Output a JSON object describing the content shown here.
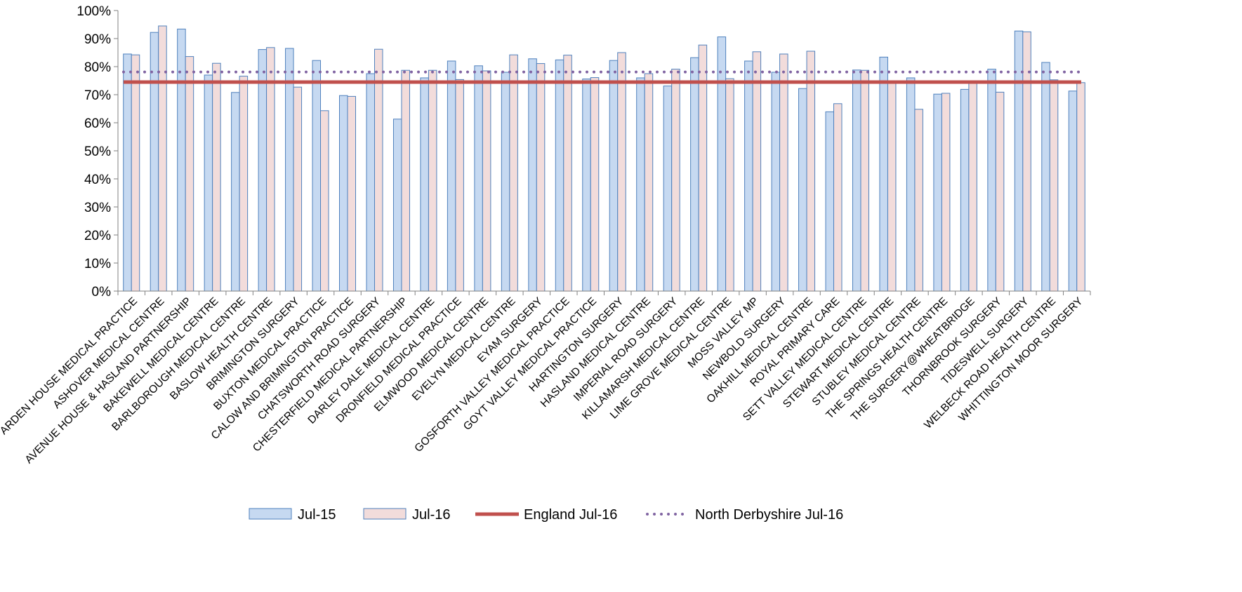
{
  "chart_data": {
    "type": "bar",
    "title": "",
    "xlabel": "",
    "ylabel": "",
    "ylim": [
      0,
      1
    ],
    "y_tick_labels": [
      "0%",
      "10%",
      "20%",
      "30%",
      "40%",
      "50%",
      "60%",
      "70%",
      "80%",
      "90%",
      "100%"
    ],
    "grid": false,
    "legend_position": "bottom",
    "categories": [
      "ARDEN HOUSE MEDICAL PRACTICE",
      "ASHOVER MEDICAL CENTRE",
      "AVENUE HOUSE & HASLAND PARTNERSHIP",
      "BAKEWELL MEDICAL CENTRE",
      "BARLBOROUGH MEDICAL CENTRE",
      "BASLOW HEALTH CENTRE",
      "BRIMINGTON SURGERY",
      "BUXTON MEDICAL PRACTICE",
      "CALOW AND BRIMINGTON PRACTICE",
      "CHATSWORTH ROAD SURGERY",
      "CHESTERFIELD MEDICAL PARTNERSHIP",
      "DARLEY DALE MEDICAL CENTRE",
      "DRONFIELD MEDICAL PRACTICE",
      "ELMWOOD MEDICAL CENTRE",
      "EVELYN MEDICAL CENTRE",
      "EYAM SURGERY",
      "GOSFORTH VALLEY MEDICAL PRACTICE",
      "GOYT VALLEY MEDICAL PRACTICE",
      "HARTINGTON SURGERY",
      "HASLAND MEDICAL CENTRE",
      "IMPERIAL ROAD SURGERY",
      "KILLAMARSH MEDICAL CENTRE",
      "LIME GROVE MEDICAL CENTRE",
      "MOSS VALLEY MP",
      "NEWBOLD SURGERY",
      "OAKHILL MEDICAL CENTRE",
      "ROYAL PRIMARY CARE",
      "SETT VALLEY MEDICAL CENTRE",
      "STEWART MEDICAL CENTRE",
      "STUBLEY MEDICAL CENTRE",
      "THE SPRINGS HEALTH CENTRE",
      "THE SURGERY@WHEATBRIDGE",
      "THORNBROOK SURGERY",
      "TIDESWELL SURGERY",
      "WELBECK ROAD HEALTH CENTRE",
      "WHITTINGTON MOOR SURGERY"
    ],
    "series": [
      {
        "name": "Jul-15",
        "type": "bar",
        "fill": "#c6d9f1",
        "stroke": "#4f81bd",
        "values": [
          0.845,
          0.922,
          0.934,
          0.77,
          0.708,
          0.861,
          0.865,
          0.822,
          0.697,
          0.775,
          0.613,
          0.76,
          0.82,
          0.803,
          0.78,
          0.828,
          0.824,
          0.756,
          0.822,
          0.76,
          0.731,
          0.832,
          0.906,
          0.82,
          0.78,
          0.722,
          0.639,
          0.788,
          0.834,
          0.76,
          0.702,
          0.719,
          0.791,
          0.927,
          0.815,
          0.713
        ]
      },
      {
        "name": "Jul-16",
        "type": "bar",
        "fill": "#f2dcdb",
        "stroke": "#4f81bd",
        "values": [
          0.842,
          0.945,
          0.836,
          0.812,
          0.766,
          0.868,
          0.727,
          0.643,
          0.694,
          0.862,
          0.787,
          0.787,
          0.754,
          0.785,
          0.842,
          0.811,
          0.841,
          0.761,
          0.85,
          0.775,
          0.791,
          0.877,
          0.757,
          0.853,
          0.845,
          0.855,
          0.668,
          0.787,
          0.744,
          0.648,
          0.705,
          0.75,
          0.709,
          0.924,
          0.753,
          0.743
        ]
      },
      {
        "name": "England Jul-16",
        "type": "reference-line",
        "style": "solid",
        "color": "#c0504d",
        "value": 0.745
      },
      {
        "name": "North Derbyshire Jul-16",
        "type": "reference-line",
        "style": "dotted",
        "color": "#8064a2",
        "value": 0.781
      }
    ]
  }
}
